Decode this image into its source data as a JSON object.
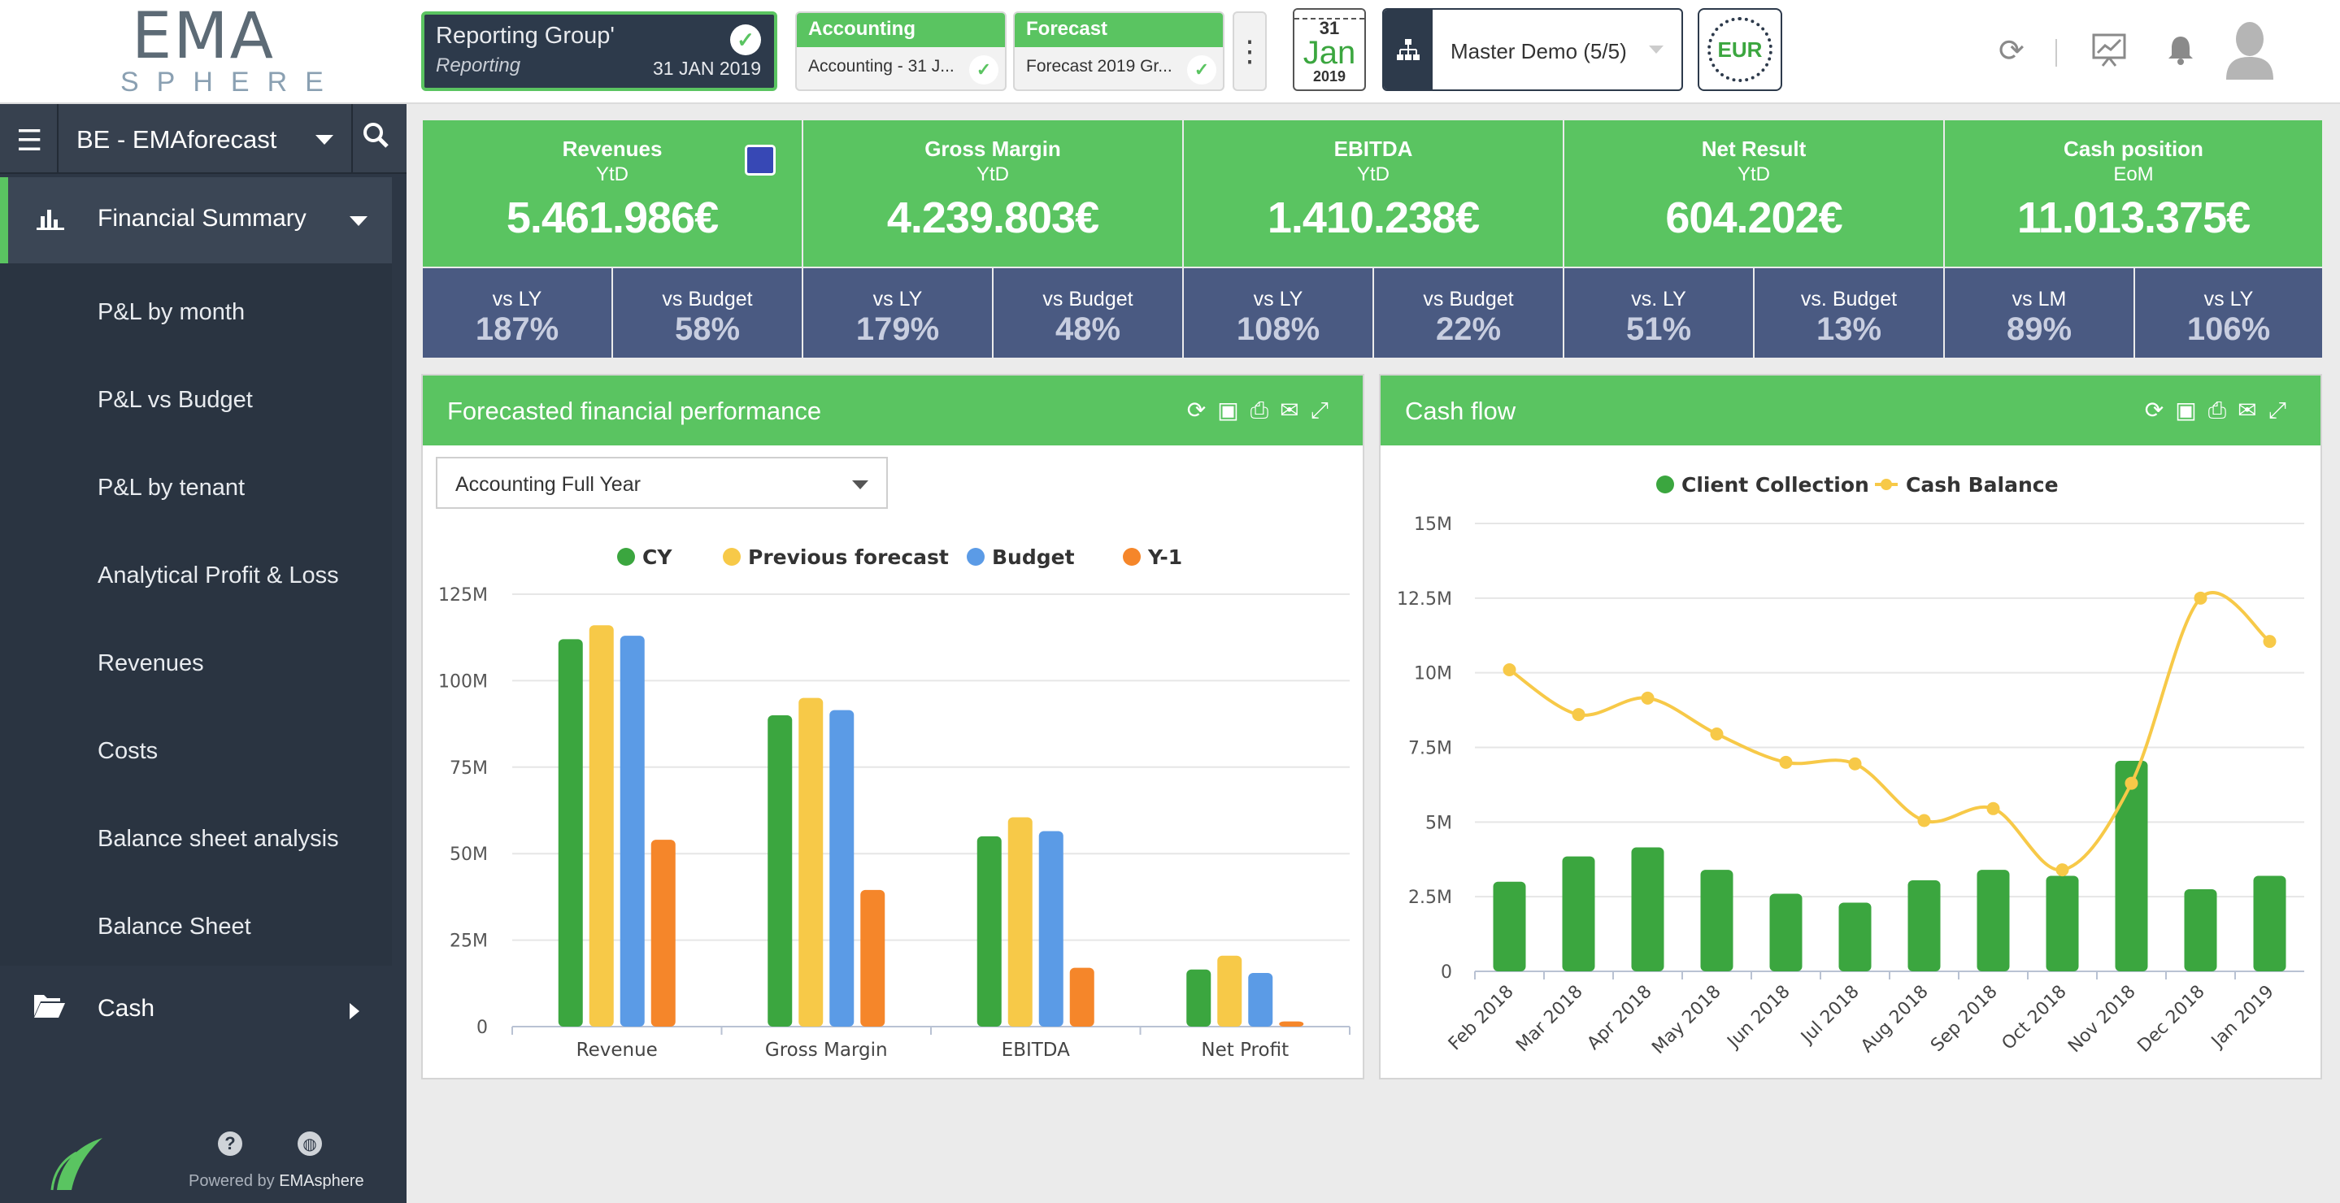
{
  "logo": {
    "line1": "EMA",
    "line2": "SPHERE"
  },
  "context": {
    "reporting_group": {
      "title": "Reporting Group'",
      "subtitle": "Reporting",
      "date": "31 JAN 2019"
    },
    "accounting": {
      "title": "Accounting",
      "value": "Accounting - 31 J..."
    },
    "forecast": {
      "title": "Forecast",
      "value": "Forecast 2019 Gr..."
    },
    "calendar": {
      "day": "31",
      "month": "Jan",
      "year": "2019"
    },
    "company": "Master Demo (5/5)",
    "currency": "EUR"
  },
  "sidebar": {
    "entity": "BE - EMAforecast",
    "active": "Financial Summary",
    "subitems": [
      "P&L by month",
      "P&L vs Budget",
      "P&L by tenant",
      "Analytical Profit & Loss",
      "Revenues",
      "Costs",
      "Balance sheet analysis",
      "Balance Sheet"
    ],
    "cash": "Cash",
    "footer": {
      "powered": "Powered by",
      "brand": "EMAsphere"
    }
  },
  "kpis": [
    {
      "title": "Revenues",
      "sub": "YtD",
      "value": "5.461.986€"
    },
    {
      "title": "Gross Margin",
      "sub": "YtD",
      "value": "4.239.803€"
    },
    {
      "title": "EBITDA",
      "sub": "YtD",
      "value": "1.410.238€"
    },
    {
      "title": "Net Result",
      "sub": "YtD",
      "value": "604.202€"
    },
    {
      "title": "Cash position",
      "sub": "EoM",
      "value": "11.013.375€"
    }
  ],
  "comparisons": [
    {
      "label": "vs LY",
      "value": "187%"
    },
    {
      "label": "vs Budget",
      "value": "58%"
    },
    {
      "label": "vs LY",
      "value": "179%"
    },
    {
      "label": "vs Budget",
      "value": "48%"
    },
    {
      "label": "vs LY",
      "value": "108%"
    },
    {
      "label": "vs Budget",
      "value": "22%"
    },
    {
      "label": "vs. LY",
      "value": "51%"
    },
    {
      "label": "vs. Budget",
      "value": "13%"
    },
    {
      "label": "vs LM",
      "value": "89%"
    },
    {
      "label": "vs LY",
      "value": "106%"
    }
  ],
  "panels": {
    "left": {
      "title": "Forecasted financial performance",
      "select": "Accounting Full Year"
    },
    "right": {
      "title": "Cash flow"
    }
  },
  "colors": {
    "green": "#5ac461",
    "dark": "#2d3745",
    "cy": "#3ba63f",
    "prev": "#f7c948",
    "budget": "#5b9be6",
    "y1": "#f5862a"
  },
  "chart_data": [
    {
      "type": "bar",
      "title": "Forecasted financial performance",
      "categories": [
        "Revenue",
        "Gross Margin",
        "EBITDA",
        "Net Profit"
      ],
      "series": [
        {
          "name": "CY",
          "values": [
            112,
            90,
            55,
            16.5
          ]
        },
        {
          "name": "Previous forecast",
          "values": [
            116,
            95,
            60.5,
            20.5
          ]
        },
        {
          "name": "Budget",
          "values": [
            113,
            91.5,
            56.5,
            15.5
          ]
        },
        {
          "name": "Y-1",
          "values": [
            54,
            39.5,
            17,
            1.5
          ]
        }
      ],
      "ylim": [
        0,
        125
      ],
      "yticks": [
        "0",
        "25M",
        "50M",
        "75M",
        "100M",
        "125M"
      ],
      "grid": true,
      "legend": "top"
    },
    {
      "type": "bar+line",
      "title": "Cash flow",
      "categories": [
        "Feb 2018",
        "Mar 2018",
        "Apr 2018",
        "May 2018",
        "Jun 2018",
        "Jul 2018",
        "Aug 2018",
        "Sep 2018",
        "Oct 2018",
        "Nov 2018",
        "Dec 2018",
        "Jan 2019"
      ],
      "series": [
        {
          "name": "Client Collection",
          "type": "bar",
          "values": [
            3.0,
            3.85,
            4.15,
            3.4,
            2.6,
            2.3,
            3.05,
            3.4,
            3.2,
            7.05,
            2.75,
            3.2
          ]
        },
        {
          "name": "Cash Balance",
          "type": "line",
          "values": [
            10.1,
            8.6,
            9.15,
            7.95,
            7.0,
            6.95,
            5.05,
            5.45,
            3.4,
            6.3,
            12.5,
            11.05
          ]
        }
      ],
      "ylim": [
        0,
        15
      ],
      "yticks": [
        "0",
        "2.5M",
        "5M",
        "7.5M",
        "10M",
        "12.5M",
        "15M"
      ],
      "grid": true,
      "legend": "top"
    }
  ]
}
